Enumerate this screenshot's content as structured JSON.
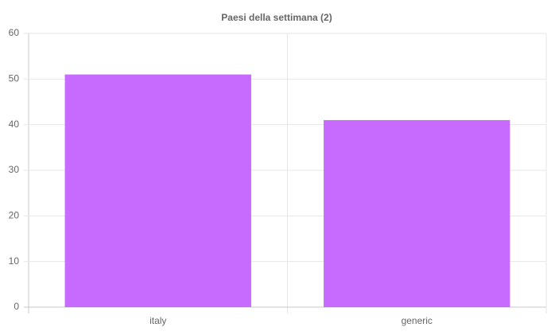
{
  "chart_data": {
    "type": "bar",
    "title": "Paesi della settimana (2)",
    "categories": [
      "italy",
      "generic"
    ],
    "values": [
      51,
      41
    ],
    "color": "#c76bff",
    "ylim": [
      0,
      60
    ],
    "yticks": [
      0,
      10,
      20,
      30,
      40,
      50,
      60
    ],
    "grid": true
  }
}
